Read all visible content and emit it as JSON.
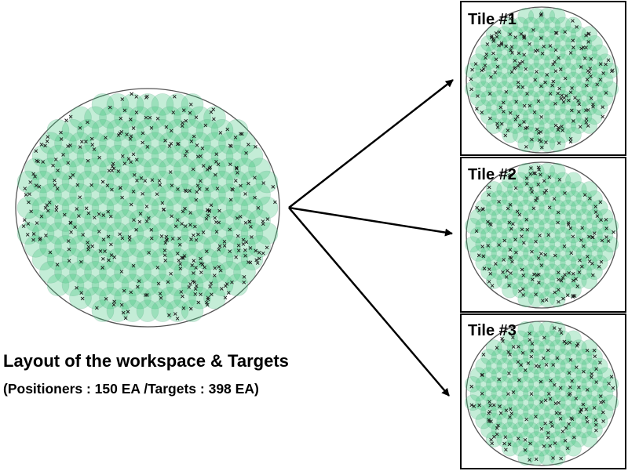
{
  "workspace": {
    "caption_title": "Layout of the workspace & Targets",
    "caption_detail": "(Positioners : 150 EA /Targets : 398 EA)"
  },
  "tiles": [
    {
      "label": "Tile #1"
    },
    {
      "label": "Tile #2"
    },
    {
      "label": "Tile #3"
    }
  ],
  "colors": {
    "patrol_fill": "#3cc47a",
    "target_mark": "#1a1a1a",
    "boundary": "#555555",
    "arrow": "#000000"
  }
}
